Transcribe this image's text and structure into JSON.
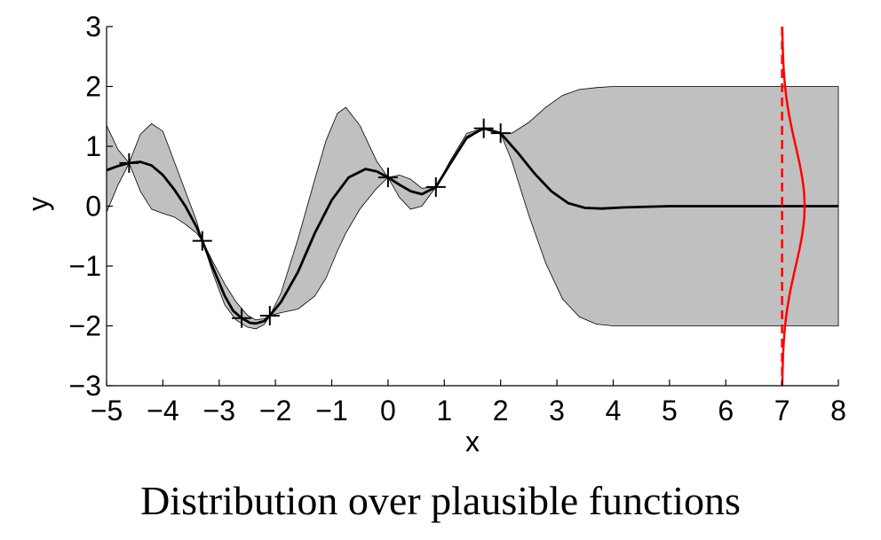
{
  "caption": "Distribution over plausible functions",
  "chart_data": {
    "type": "line",
    "title": "",
    "xlabel": "x",
    "ylabel": "y",
    "xlim": [
      -5,
      8
    ],
    "ylim": [
      -3,
      3
    ],
    "xticks": [
      -5,
      -4,
      -3,
      -2,
      -1,
      0,
      1,
      2,
      3,
      4,
      5,
      6,
      7,
      8
    ],
    "yticks": [
      -3,
      -2,
      -1,
      0,
      1,
      2,
      3
    ],
    "grid": false,
    "observations": {
      "x": [
        -4.6,
        -3.3,
        -2.6,
        -2.1,
        0.0,
        0.85,
        1.7,
        2.0
      ],
      "y": [
        0.72,
        -0.58,
        -1.87,
        -1.83,
        0.48,
        0.32,
        1.3,
        1.22
      ]
    },
    "mean": {
      "x": [
        -5,
        -4.8,
        -4.6,
        -4.4,
        -4.2,
        -4.0,
        -3.8,
        -3.6,
        -3.4,
        -3.3,
        -3.1,
        -2.9,
        -2.75,
        -2.6,
        -2.45,
        -2.35,
        -2.2,
        -2.1,
        -1.9,
        -1.6,
        -1.3,
        -1.0,
        -0.7,
        -0.4,
        -0.2,
        0.0,
        0.2,
        0.4,
        0.6,
        0.85,
        1.1,
        1.4,
        1.7,
        2.0,
        2.3,
        2.6,
        2.9,
        3.2,
        3.5,
        3.8,
        4.2,
        5.0,
        6.0,
        7.0,
        8.0
      ],
      "y": [
        0.6,
        0.67,
        0.72,
        0.74,
        0.68,
        0.52,
        0.28,
        0.0,
        -0.35,
        -0.58,
        -1.05,
        -1.5,
        -1.75,
        -1.87,
        -1.95,
        -1.96,
        -1.92,
        -1.83,
        -1.6,
        -1.1,
        -0.45,
        0.1,
        0.48,
        0.62,
        0.58,
        0.48,
        0.36,
        0.25,
        0.2,
        0.32,
        0.7,
        1.15,
        1.3,
        1.22,
        0.9,
        0.55,
        0.25,
        0.05,
        -0.03,
        -0.04,
        -0.02,
        0.0,
        0.0,
        0.0,
        0.0
      ]
    },
    "confidence_band": {
      "x": [
        -5,
        -4.8,
        -4.6,
        -4.4,
        -4.2,
        -4.0,
        -3.8,
        -3.6,
        -3.4,
        -3.3,
        -3.1,
        -2.9,
        -2.7,
        -2.5,
        -2.35,
        -2.2,
        -2.1,
        -1.9,
        -1.6,
        -1.3,
        -1.1,
        -0.9,
        -0.75,
        -0.5,
        -0.2,
        0.0,
        0.2,
        0.4,
        0.6,
        0.85,
        1.1,
        1.4,
        1.7,
        2.0,
        2.2,
        2.5,
        2.8,
        3.1,
        3.4,
        3.7,
        4.0,
        4.5,
        5.0,
        8.0
      ],
      "upper": [
        1.35,
        0.95,
        0.72,
        1.2,
        1.38,
        1.25,
        0.75,
        0.25,
        -0.25,
        -0.58,
        -0.95,
        -1.3,
        -1.6,
        -1.82,
        -1.9,
        -1.88,
        -1.83,
        -1.45,
        -0.55,
        0.45,
        1.1,
        1.55,
        1.65,
        1.35,
        0.75,
        0.48,
        0.52,
        0.45,
        0.3,
        0.32,
        0.75,
        1.22,
        1.3,
        1.22,
        1.22,
        1.4,
        1.65,
        1.85,
        1.95,
        1.98,
        2.0,
        2.0,
        2.0,
        2.0
      ],
      "lower": [
        -0.1,
        0.35,
        0.72,
        0.25,
        -0.05,
        -0.12,
        -0.18,
        -0.3,
        -0.45,
        -0.58,
        -1.15,
        -1.65,
        -1.9,
        -2.02,
        -2.05,
        -1.98,
        -1.83,
        -1.78,
        -1.72,
        -1.5,
        -1.2,
        -0.75,
        -0.45,
        -0.05,
        0.3,
        0.48,
        0.15,
        -0.05,
        0.0,
        0.32,
        0.68,
        1.12,
        1.3,
        1.22,
        0.75,
        -0.15,
        -0.95,
        -1.55,
        -1.85,
        -1.97,
        -2.0,
        -2.0,
        -2.0,
        -2.0
      ]
    },
    "marginal_at_x": 7,
    "marginal_gaussian": {
      "mean": 0,
      "std": 1,
      "scale_x": 0.4
    },
    "colors": {
      "band": "#c0c0c0",
      "mean": "#000000",
      "marginal": "#ff0000",
      "axis": "#000000"
    }
  }
}
